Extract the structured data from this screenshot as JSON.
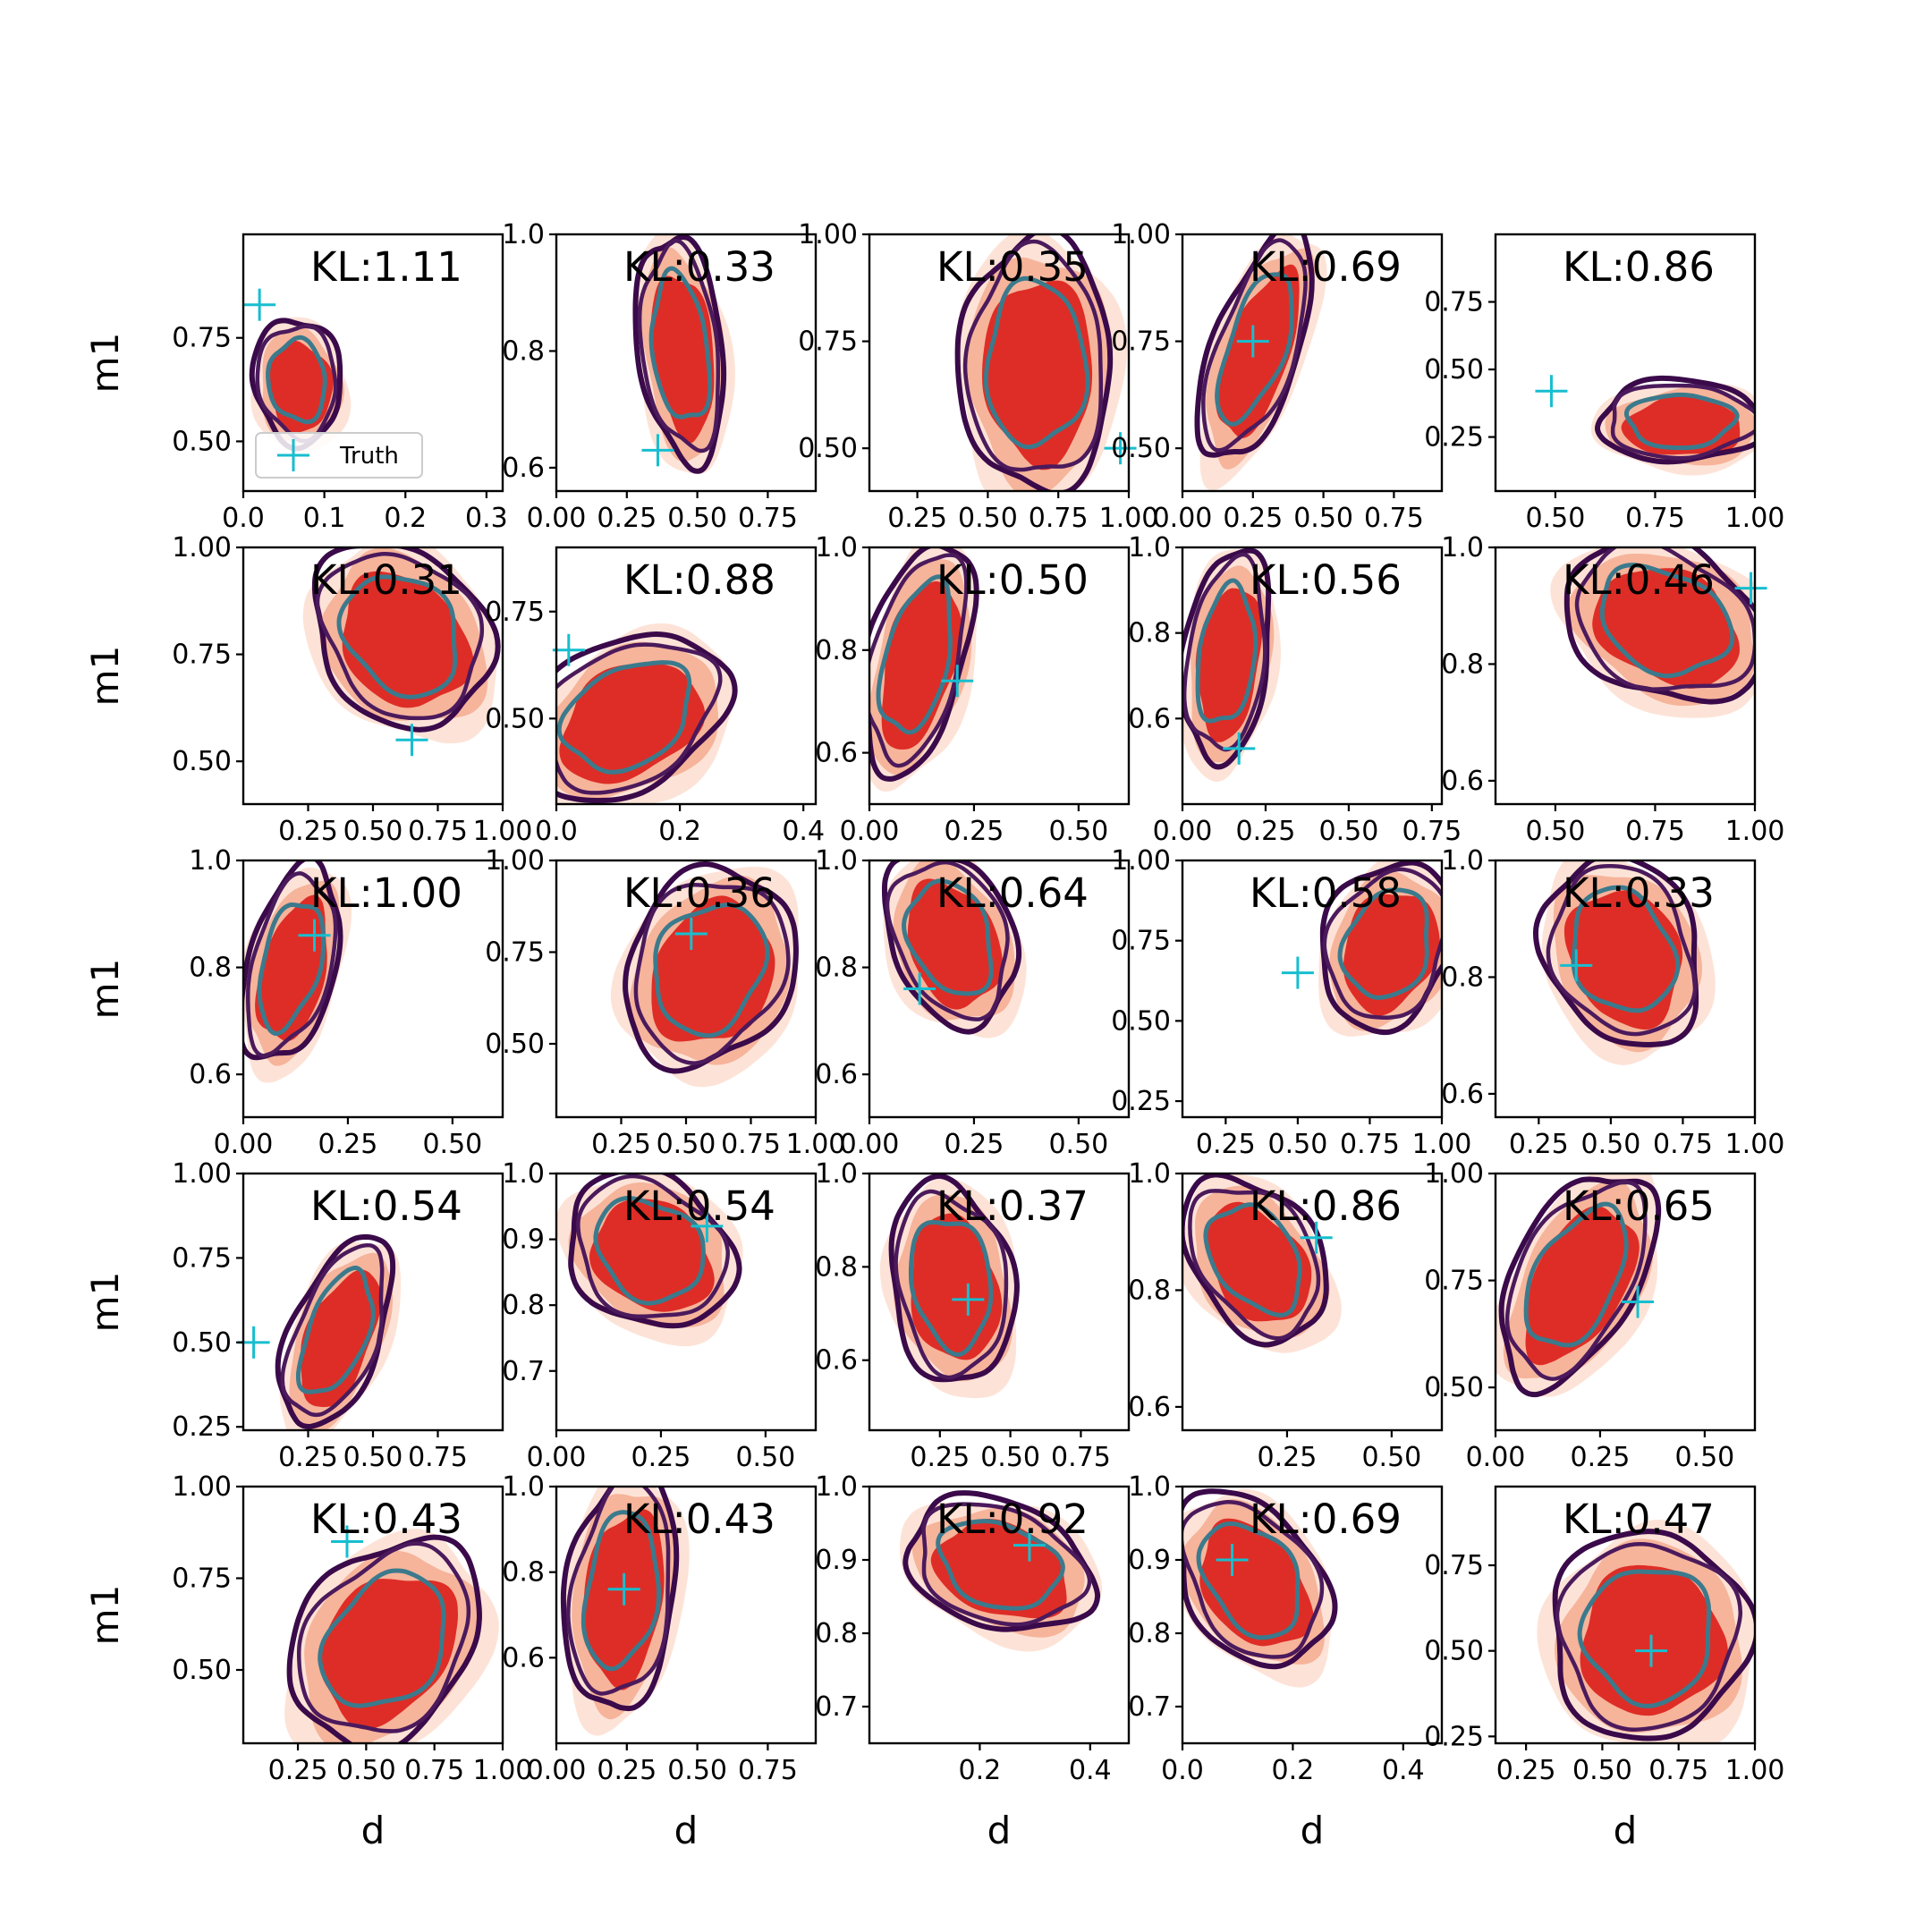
{
  "chart_data": {
    "type": "contour-grid",
    "rows": 5,
    "cols": 5,
    "xlabel": "d",
    "ylabel": "m1",
    "legend": {
      "label": "Truth",
      "marker": "+",
      "placement": "lower-left",
      "panel": 0
    },
    "colors": {
      "truth": "#17becf",
      "fill_outer": "#fde3d7",
      "fill_mid": "#f6b49b",
      "fill_inner": "#de2d26",
      "contour_inner": "#3b7a8c",
      "contour_mid": "#4b1a5c",
      "contour_outer": "#3a0a4a"
    },
    "panels": [
      {
        "kl": "KL:1.11",
        "xlim": [
          0,
          0.32
        ],
        "ylim": [
          0.38,
          1.0
        ],
        "xticks": [
          "0.0",
          "0.1",
          "0.2",
          "0.3"
        ],
        "xt": [
          0,
          0.1,
          0.2,
          0.3
        ],
        "yticks": [
          "0.50",
          "0.75"
        ],
        "yt": [
          0.5,
          0.75
        ],
        "truth": [
          0.02,
          0.83
        ],
        "center": [
          0.07,
          0.64
        ],
        "spread": [
          0.1,
          0.28
        ],
        "skew": 0.05
      },
      {
        "kl": "KL:0.33",
        "xlim": [
          0,
          0.92
        ],
        "ylim": [
          0.56,
          1.0
        ],
        "xticks": [
          "0.00",
          "0.25",
          "0.50",
          "0.75"
        ],
        "xt": [
          0,
          0.25,
          0.5,
          0.75
        ],
        "yticks": [
          "0.6",
          "0.8",
          "1.0"
        ],
        "yt": [
          0.6,
          0.8,
          1.0
        ],
        "truth": [
          0.36,
          0.63
        ],
        "center": [
          0.45,
          0.8
        ],
        "spread": [
          0.28,
          0.36
        ],
        "skew": 0.1
      },
      {
        "kl": "KL:0.35",
        "xlim": [
          0.08,
          1.0
        ],
        "ylim": [
          0.4,
          1.0
        ],
        "xticks": [
          "0.25",
          "0.50",
          "0.75",
          "1.00"
        ],
        "xt": [
          0.25,
          0.5,
          0.75,
          1.0
        ],
        "yticks": [
          "0.50",
          "0.75",
          "1.00"
        ],
        "yt": [
          0.5,
          0.75,
          1.0
        ],
        "truth": [
          0.97,
          0.5
        ],
        "center": [
          0.68,
          0.69
        ],
        "spread": [
          0.5,
          0.55
        ],
        "skew": 0.0
      },
      {
        "kl": "KL:0.69",
        "xlim": [
          0,
          0.92
        ],
        "ylim": [
          0.4,
          1.0
        ],
        "xticks": [
          "0.00",
          "0.25",
          "0.50",
          "0.75"
        ],
        "xt": [
          0,
          0.25,
          0.5,
          0.75
        ],
        "yticks": [
          "0.50",
          "0.75",
          "1.00"
        ],
        "yt": [
          0.5,
          0.75,
          1.0
        ],
        "truth": [
          0.25,
          0.75
        ],
        "center": [
          0.27,
          0.73
        ],
        "spread": [
          0.3,
          0.5
        ],
        "skew": -0.3
      },
      {
        "kl": "KL:0.86",
        "xlim": [
          0.35,
          1.0
        ],
        "ylim": [
          0.05,
          1.0
        ],
        "xticks": [
          "0.50",
          "0.75",
          "1.00"
        ],
        "xt": [
          0.5,
          0.75,
          1.0
        ],
        "yticks": [
          "0.25",
          "0.50",
          "0.75"
        ],
        "yt": [
          0.25,
          0.5,
          0.75
        ],
        "truth": [
          0.49,
          0.42
        ],
        "center": [
          0.82,
          0.3
        ],
        "spread": [
          0.38,
          0.28
        ],
        "skew": 0.0
      },
      {
        "kl": "KL:0.31",
        "xlim": [
          0,
          1.0
        ],
        "ylim": [
          0.4,
          1.0
        ],
        "xticks": [
          "0.25",
          "0.50",
          "0.75",
          "1.00"
        ],
        "xt": [
          0.25,
          0.5,
          0.75,
          1.0
        ],
        "yticks": [
          "0.50",
          "0.75",
          "1.00"
        ],
        "yt": [
          0.5,
          0.75,
          1.0
        ],
        "truth": [
          0.65,
          0.55
        ],
        "center": [
          0.62,
          0.79
        ],
        "spread": [
          0.62,
          0.4
        ],
        "skew": 0.2
      },
      {
        "kl": "KL:0.88",
        "xlim": [
          0,
          0.42
        ],
        "ylim": [
          0.3,
          0.9
        ],
        "xticks": [
          "0.0",
          "0.2",
          "0.4"
        ],
        "xt": [
          0,
          0.2,
          0.4
        ],
        "yticks": [
          "0.50",
          "0.75"
        ],
        "yt": [
          0.5,
          0.75
        ],
        "truth": [
          0.02,
          0.66
        ],
        "center": [
          0.12,
          0.5
        ],
        "spread": [
          0.28,
          0.36
        ],
        "skew": -0.35
      },
      {
        "kl": "KL:0.50",
        "xlim": [
          0,
          0.62
        ],
        "ylim": [
          0.5,
          1.0
        ],
        "xticks": [
          "0.00",
          "0.25",
          "0.50"
        ],
        "xt": [
          0,
          0.25,
          0.5
        ],
        "yticks": [
          "0.6",
          "0.8",
          "1.0"
        ],
        "yt": [
          0.6,
          0.8,
          1.0
        ],
        "truth": [
          0.21,
          0.74
        ],
        "center": [
          0.12,
          0.78
        ],
        "spread": [
          0.22,
          0.42
        ],
        "skew": -0.2
      },
      {
        "kl": "KL:0.56",
        "xlim": [
          0,
          0.78
        ],
        "ylim": [
          0.4,
          1.0
        ],
        "xticks": [
          "0.00",
          "0.25",
          "0.50",
          "0.75"
        ],
        "xt": [
          0,
          0.25,
          0.5,
          0.75
        ],
        "yticks": [
          "0.6",
          "0.8",
          "1.0"
        ],
        "yt": [
          0.6,
          0.8,
          1.0
        ],
        "truth": [
          0.17,
          0.53
        ],
        "center": [
          0.14,
          0.74
        ],
        "spread": [
          0.24,
          0.46
        ],
        "skew": -0.1
      },
      {
        "kl": "KL:0.46",
        "xlim": [
          0.35,
          1.0
        ],
        "ylim": [
          0.56,
          1.0
        ],
        "xticks": [
          "0.50",
          "0.75",
          "1.00"
        ],
        "xt": [
          0.5,
          0.75,
          1.0
        ],
        "yticks": [
          "0.6",
          "0.8",
          "1.0"
        ],
        "yt": [
          0.6,
          0.8,
          1.0
        ],
        "truth": [
          0.99,
          0.93
        ],
        "center": [
          0.78,
          0.87
        ],
        "spread": [
          0.45,
          0.26
        ],
        "skew": 0.3
      },
      {
        "kl": "KL:1.00",
        "xlim": [
          0,
          0.62
        ],
        "ylim": [
          0.52,
          1.0
        ],
        "xticks": [
          "0.00",
          "0.25",
          "0.50"
        ],
        "xt": [
          0,
          0.25,
          0.5
        ],
        "yticks": [
          "0.6",
          "0.8",
          "1.0"
        ],
        "yt": [
          0.6,
          0.8,
          1.0
        ],
        "truth": [
          0.17,
          0.86
        ],
        "center": [
          0.12,
          0.8
        ],
        "spread": [
          0.2,
          0.34
        ],
        "skew": -0.2
      },
      {
        "kl": "KL:0.36",
        "xlim": [
          0,
          1.0
        ],
        "ylim": [
          0.3,
          1.0
        ],
        "xticks": [
          "0.25",
          "0.50",
          "0.75",
          "1.00"
        ],
        "xt": [
          0.25,
          0.5,
          0.75,
          1.0
        ],
        "yticks": [
          "0.50",
          "0.75",
          "1.00"
        ],
        "yt": [
          0.5,
          0.75,
          1.0
        ],
        "truth": [
          0.52,
          0.8
        ],
        "center": [
          0.6,
          0.7
        ],
        "spread": [
          0.6,
          0.5
        ],
        "skew": -0.15
      },
      {
        "kl": "KL:0.64",
        "xlim": [
          0,
          0.62
        ],
        "ylim": [
          0.52,
          1.0
        ],
        "xticks": [
          "0.00",
          "0.25",
          "0.50"
        ],
        "xt": [
          0,
          0.25,
          0.5
        ],
        "yticks": [
          "0.6",
          "0.8",
          "1.0"
        ],
        "yt": [
          0.6,
          0.8,
          1.0
        ],
        "truth": [
          0.12,
          0.76
        ],
        "center": [
          0.2,
          0.85
        ],
        "spread": [
          0.28,
          0.3
        ],
        "skew": 0.2
      },
      {
        "kl": "KL:0.58",
        "xlim": [
          0.1,
          1.0
        ],
        "ylim": [
          0.2,
          1.0
        ],
        "xticks": [
          "0.25",
          "0.50",
          "0.75",
          "1.00"
        ],
        "xt": [
          0.25,
          0.5,
          0.75,
          1.0
        ],
        "yticks": [
          "0.25",
          "0.50",
          "0.75",
          "1.00"
        ],
        "yt": [
          0.25,
          0.5,
          0.75,
          1.0
        ],
        "truth": [
          0.5,
          0.65
        ],
        "center": [
          0.82,
          0.73
        ],
        "spread": [
          0.42,
          0.48
        ],
        "skew": -0.15
      },
      {
        "kl": "KL:0.33",
        "xlim": [
          0.1,
          1.0
        ],
        "ylim": [
          0.56,
          1.0
        ],
        "xticks": [
          "0.25",
          "0.50",
          "0.75",
          "1.00"
        ],
        "xt": [
          0.25,
          0.5,
          0.75,
          1.0
        ],
        "yticks": [
          "0.6",
          "0.8",
          "1.0"
        ],
        "yt": [
          0.6,
          0.8,
          1.0
        ],
        "truth": [
          0.38,
          0.82
        ],
        "center": [
          0.55,
          0.84
        ],
        "spread": [
          0.5,
          0.3
        ],
        "skew": 0.15
      },
      {
        "kl": "KL:0.54",
        "xlim": [
          0,
          1.0
        ],
        "ylim": [
          0.24,
          1.0
        ],
        "xticks": [
          "0.25",
          "0.50",
          "0.75"
        ],
        "xt": [
          0.25,
          0.5,
          0.75
        ],
        "yticks": [
          "0.25",
          "0.50",
          "0.75",
          "1.00"
        ],
        "yt": [
          0.25,
          0.5,
          0.75,
          1.0
        ],
        "truth": [
          0.04,
          0.5
        ],
        "center": [
          0.37,
          0.52
        ],
        "spread": [
          0.34,
          0.52
        ],
        "skew": -0.3
      },
      {
        "kl": "KL:0.54",
        "xlim": [
          0,
          0.62
        ],
        "ylim": [
          0.61,
          1.0
        ],
        "xticks": [
          "0.00",
          "0.25",
          "0.50"
        ],
        "xt": [
          0,
          0.25,
          0.5
        ],
        "yticks": [
          "0.7",
          "0.8",
          "0.9",
          "1.0"
        ],
        "yt": [
          0.7,
          0.8,
          0.9,
          1.0
        ],
        "truth": [
          0.36,
          0.92
        ],
        "center": [
          0.23,
          0.88
        ],
        "spread": [
          0.36,
          0.22
        ],
        "skew": 0.2
      },
      {
        "kl": "KL:0.37",
        "xlim": [
          0,
          0.92
        ],
        "ylim": [
          0.45,
          1.0
        ],
        "xticks": [
          "0.25",
          "0.50",
          "0.75"
        ],
        "xt": [
          0.25,
          0.5,
          0.75
        ],
        "yticks": [
          "0.6",
          "0.8",
          "1.0"
        ],
        "yt": [
          0.6,
          0.8,
          1.0
        ],
        "truth": [
          0.35,
          0.73
        ],
        "center": [
          0.3,
          0.76
        ],
        "spread": [
          0.4,
          0.4
        ],
        "skew": 0.1
      },
      {
        "kl": "KL:0.86",
        "xlim": [
          0,
          0.62
        ],
        "ylim": [
          0.56,
          1.0
        ],
        "xticks": [
          "0.25",
          "0.50"
        ],
        "xt": [
          0.25,
          0.5
        ],
        "yticks": [
          "0.6",
          "0.8",
          "1.0"
        ],
        "yt": [
          0.6,
          0.8,
          1.0
        ],
        "truth": [
          0.32,
          0.89
        ],
        "center": [
          0.18,
          0.85
        ],
        "spread": [
          0.3,
          0.26
        ],
        "skew": 0.3
      },
      {
        "kl": "KL:0.65",
        "xlim": [
          0,
          0.62
        ],
        "ylim": [
          0.4,
          1.0
        ],
        "xticks": [
          "0.00",
          "0.25",
          "0.50"
        ],
        "xt": [
          0,
          0.25,
          0.5
        ],
        "yticks": [
          "0.50",
          "0.75",
          "1.00"
        ],
        "yt": [
          0.5,
          0.75,
          1.0
        ],
        "truth": [
          0.34,
          0.7
        ],
        "center": [
          0.2,
          0.75
        ],
        "spread": [
          0.3,
          0.46
        ],
        "skew": -0.35
      },
      {
        "kl": "KL:0.43",
        "xlim": [
          0.05,
          1.0
        ],
        "ylim": [
          0.3,
          1.0
        ],
        "xticks": [
          "0.25",
          "0.50",
          "0.75",
          "1.00"
        ],
        "xt": [
          0.25,
          0.5,
          0.75,
          1.0
        ],
        "yticks": [
          "0.50",
          "0.75",
          "1.00"
        ],
        "yt": [
          0.5,
          0.75,
          1.0
        ],
        "truth": [
          0.43,
          0.85
        ],
        "center": [
          0.58,
          0.57
        ],
        "spread": [
          0.62,
          0.52
        ],
        "skew": -0.25
      },
      {
        "kl": "KL:0.43",
        "xlim": [
          0,
          0.92
        ],
        "ylim": [
          0.4,
          1.0
        ],
        "xticks": [
          "0.00",
          "0.25",
          "0.50",
          "0.75"
        ],
        "xt": [
          0,
          0.25,
          0.5,
          0.75
        ],
        "yticks": [
          "0.6",
          "0.8",
          "1.0"
        ],
        "yt": [
          0.6,
          0.8,
          1.0
        ],
        "truth": [
          0.24,
          0.76
        ],
        "center": [
          0.24,
          0.75
        ],
        "spread": [
          0.36,
          0.52
        ],
        "skew": -0.1
      },
      {
        "kl": "KL:0.92",
        "xlim": [
          0,
          0.47
        ],
        "ylim": [
          0.65,
          1.0
        ],
        "xticks": [
          "0.2",
          "0.4"
        ],
        "xt": [
          0.2,
          0.4
        ],
        "yticks": [
          "0.7",
          "0.8",
          "0.9",
          "1.0"
        ],
        "yt": [
          0.7,
          0.8,
          0.9,
          1.0
        ],
        "truth": [
          0.29,
          0.92
        ],
        "center": [
          0.24,
          0.89
        ],
        "spread": [
          0.3,
          0.17
        ],
        "skew": 0.35
      },
      {
        "kl": "KL:0.69",
        "xlim": [
          0,
          0.47
        ],
        "ylim": [
          0.65,
          1.0
        ],
        "xticks": [
          "0.0",
          "0.2",
          "0.4"
        ],
        "xt": [
          0,
          0.2,
          0.4
        ],
        "yticks": [
          "0.7",
          "0.8",
          "0.9",
          "1.0"
        ],
        "yt": [
          0.7,
          0.8,
          0.9,
          1.0
        ],
        "truth": [
          0.09,
          0.9
        ],
        "center": [
          0.13,
          0.87
        ],
        "spread": [
          0.24,
          0.22
        ],
        "skew": 0.3
      },
      {
        "kl": "KL:0.47",
        "xlim": [
          0.15,
          1.0
        ],
        "ylim": [
          0.23,
          0.98
        ],
        "xticks": [
          "0.25",
          "0.50",
          "0.75",
          "1.00"
        ],
        "xt": [
          0.25,
          0.5,
          0.75,
          1.0
        ],
        "yticks": [
          "0.25",
          "0.50",
          "0.75"
        ],
        "yt": [
          0.25,
          0.5,
          0.75
        ],
        "truth": [
          0.66,
          0.5
        ],
        "center": [
          0.66,
          0.54
        ],
        "spread": [
          0.6,
          0.56
        ],
        "skew": 0.0
      }
    ]
  }
}
